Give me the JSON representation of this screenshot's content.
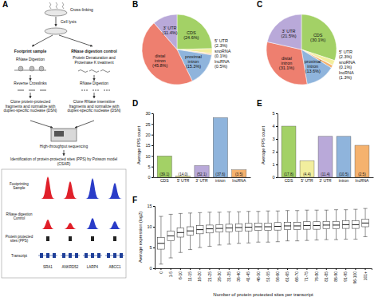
{
  "diagram": {
    "panel": "A",
    "top": [
      "Cross-linking",
      "Cell lysis"
    ],
    "branches": [
      {
        "title": "Footprint sample",
        "steps": [
          "RNase Digestion",
          "Reverse Crosslinks",
          "Clone protein-protected fragments and normalize with duplex-specific nuclease (DSN)"
        ]
      },
      {
        "title": "RNase digestion control",
        "steps": [
          "Protein Denaturation and Proteinase K treatment",
          "RNase Digestion",
          "Clone RNase insensitive fragments and normalize with duplex-specific nuclease (DSN)"
        ]
      }
    ],
    "sequencing": "High-throughput sequencing",
    "analysis": "Identification of protein-protected sites (PPS) by Poisson model (CSAR)",
    "track_rows": [
      "Footprinting Sample",
      "RNase digestion Control",
      "Protein protected sites (PPS)",
      "Transcript"
    ],
    "genes": [
      "SRA1",
      "ANKRD52",
      "LARP4",
      "ABCC1"
    ]
  },
  "chart_data": [
    {
      "type": "pie",
      "panel": "B",
      "categories": [
        "CDS",
        "5' UTR",
        "snoRNA",
        "lncRNA",
        "proximal intron",
        "distal intron",
        "3' UTR"
      ],
      "values": [
        24.6,
        2.3,
        0.1,
        0.5,
        15.3,
        45.8,
        11.4
      ],
      "value_labels": [
        "(24.6%)",
        "(2.3%)",
        "(0.1%)",
        "(0.5%)",
        "(15.3%)",
        "(45.8%)",
        "(11.4%)"
      ],
      "colors": [
        "#a3d166",
        "#f2ee9e",
        "#c9c9c9",
        "#f5b26e",
        "#8fb4dc",
        "#ee7f6f",
        "#b9a9d9"
      ],
      "data_labels": true
    },
    {
      "type": "pie",
      "panel": "C",
      "categories": [
        "CDS",
        "5' UTR",
        "snoRNA",
        "lncRNA",
        "proximal intron",
        "distal intron",
        "3' UTR"
      ],
      "values": [
        30.1,
        2.3,
        0.1,
        1.3,
        13.6,
        31.1,
        21.5
      ],
      "value_labels": [
        "(30.1%)",
        "(2.3%)",
        "(0.1%)",
        "(1.3%)",
        "(13.6%)",
        "(31.1%)",
        "(21.5%)"
      ],
      "colors": [
        "#a3d166",
        "#f2ee9e",
        "#c9c9c9",
        "#f5b26e",
        "#8fb4dc",
        "#ee7f6f",
        "#b9a9d9"
      ],
      "data_labels": true
    },
    {
      "type": "bar",
      "panel": "D",
      "ylabel": "Average PPS count",
      "categories": [
        "CDS",
        "5' UTR",
        "3' UTR",
        "intron",
        "lncRNA"
      ],
      "values": [
        10.0,
        0.6,
        5.5,
        28.0,
        3.5
      ],
      "annotations": [
        "(39.1)",
        "(14.0)",
        "(52.1)",
        "(37.6)",
        "(3.5)"
      ],
      "colors": [
        "#a3d166",
        "#f2ee9e",
        "#b9a9d9",
        "#8fb4dc",
        "#f5b26e"
      ],
      "ylim": [
        0,
        30
      ],
      "yticks": [
        0,
        5,
        10,
        15,
        20,
        25,
        30
      ]
    },
    {
      "type": "bar",
      "panel": "E",
      "ylabel": "Average PPS count",
      "categories": [
        "CDS",
        "5' UTR",
        "3' UTR",
        "intron",
        "lncRNA"
      ],
      "values": [
        4.0,
        1.3,
        3.2,
        3.2,
        2.5
      ],
      "annotations": [
        "(17.8)",
        "(4.4)",
        "(11.4)",
        "(10.5)",
        "(2.5)"
      ],
      "colors": [
        "#a3d166",
        "#f2ee9e",
        "#b9a9d9",
        "#8fb4dc",
        "#f5b26e"
      ],
      "ylim": [
        0,
        5
      ],
      "yticks": [
        0,
        1,
        2,
        3,
        4,
        5
      ]
    },
    {
      "type": "box",
      "panel": "F",
      "xlabel": "Number of protein protected sites per transcript",
      "ylabel": "Average expression (log2)",
      "categories": [
        "0",
        "1-5",
        "6-10",
        "11-15",
        "16-20",
        "21-25",
        "26-30",
        "31-35",
        "36-40",
        "41-45",
        "46-50",
        "51-55",
        "56-60",
        "61-65",
        "66-70",
        "71-75",
        "76-80",
        "81-85",
        "86-90",
        "91-95",
        "96-100",
        "101+"
      ],
      "min": [
        1.0,
        2.5,
        3.8,
        4.5,
        5.0,
        5.3,
        5.6,
        5.8,
        6.0,
        6.1,
        6.3,
        6.3,
        6.4,
        6.6,
        6.6,
        6.7,
        6.8,
        6.9,
        6.9,
        7.0,
        7.0,
        7.6
      ],
      "q1": [
        4.6,
        6.6,
        7.5,
        8.0,
        8.3,
        8.5,
        8.7,
        8.8,
        8.9,
        9.0,
        9.1,
        9.1,
        9.2,
        9.3,
        9.3,
        9.4,
        9.4,
        9.5,
        9.5,
        9.6,
        9.6,
        10.0
      ],
      "median": [
        6.0,
        7.8,
        8.6,
        9.0,
        9.3,
        9.5,
        9.6,
        9.7,
        9.8,
        9.9,
        10.0,
        10.0,
        10.1,
        10.2,
        10.2,
        10.3,
        10.3,
        10.4,
        10.4,
        10.5,
        10.5,
        10.9
      ],
      "q3": [
        7.4,
        9.0,
        9.7,
        10.0,
        10.3,
        10.4,
        10.5,
        10.6,
        10.7,
        10.8,
        10.9,
        10.9,
        11.0,
        11.1,
        11.1,
        11.2,
        11.2,
        11.3,
        11.3,
        11.4,
        11.4,
        11.8
      ],
      "max": [
        12.5,
        13.0,
        13.2,
        13.3,
        13.4,
        13.5,
        13.5,
        13.6,
        13.6,
        13.7,
        13.7,
        13.8,
        13.8,
        13.9,
        13.9,
        14.0,
        14.0,
        14.0,
        14.1,
        14.1,
        14.2,
        14.4
      ],
      "ylim": [
        0,
        15
      ],
      "yticks": [
        0,
        5,
        10,
        15
      ]
    }
  ]
}
